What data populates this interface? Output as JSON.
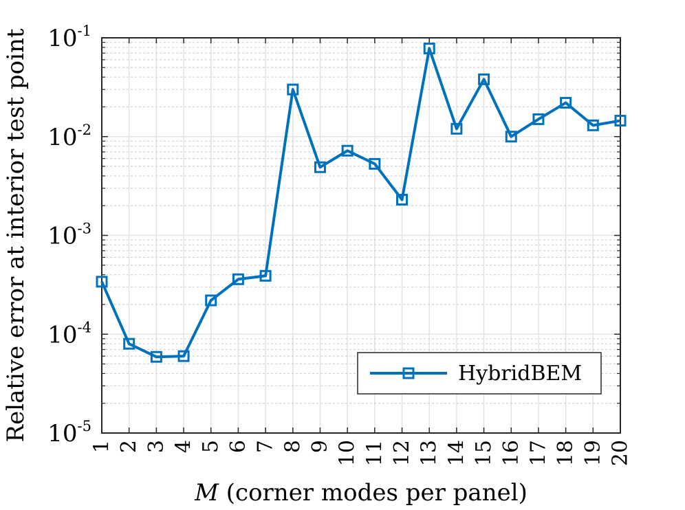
{
  "chart_data": {
    "type": "line",
    "title": "",
    "xlabel_italic": "M",
    "xlabel_rest": " (corner modes per panel)",
    "ylabel": "Relative error at interior test point",
    "yscale": "log",
    "ylim": [
      1e-05,
      0.1
    ],
    "xlim": [
      1,
      20
    ],
    "grid": true,
    "x": [
      1,
      2,
      3,
      4,
      5,
      6,
      7,
      8,
      9,
      10,
      11,
      12,
      13,
      14,
      15,
      16,
      17,
      18,
      19,
      20
    ],
    "x_tick_labels": [
      "1",
      "2",
      "3",
      "4",
      "5",
      "6",
      "7",
      "8",
      "9",
      "10",
      "11",
      "12",
      "13",
      "14",
      "15",
      "16",
      "17",
      "18",
      "19",
      "20"
    ],
    "y_ticks": [
      {
        "value": 1e-05,
        "base": "10",
        "exp": "-5"
      },
      {
        "value": 0.0001,
        "base": "10",
        "exp": "-4"
      },
      {
        "value": 0.001,
        "base": "10",
        "exp": "-3"
      },
      {
        "value": 0.01,
        "base": "10",
        "exp": "-2"
      },
      {
        "value": 0.1,
        "base": "10",
        "exp": "-1"
      }
    ],
    "series": [
      {
        "name": "HybridBEM",
        "color": "#0072BD",
        "marker": "square",
        "values": [
          0.00034,
          8e-05,
          5.9e-05,
          6e-05,
          0.00022,
          0.00036,
          0.00039,
          0.03,
          0.0049,
          0.0072,
          0.0053,
          0.0023,
          0.078,
          0.012,
          0.038,
          0.01,
          0.015,
          0.022,
          0.013,
          0.0145
        ]
      }
    ],
    "legend_position": "bottom-right"
  }
}
